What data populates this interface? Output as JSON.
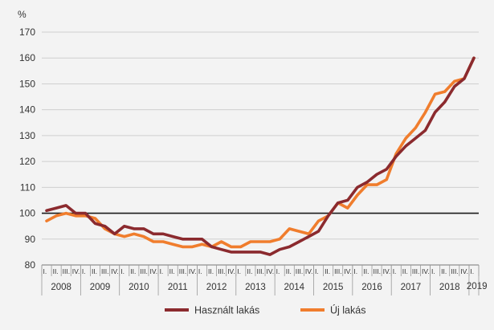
{
  "chart_data": {
    "type": "line",
    "y_unit_label": "%",
    "ylim": [
      80,
      170
    ],
    "y_ticks": [
      80,
      90,
      100,
      110,
      120,
      130,
      140,
      150,
      160,
      170
    ],
    "reference_line": 100,
    "grid": "horizontal",
    "legend_position": "bottom",
    "years": [
      "2008",
      "2009",
      "2010",
      "2011",
      "2012",
      "2013",
      "2014",
      "2015",
      "2016",
      "2017",
      "2018",
      "2019"
    ],
    "quarters": [
      "I.",
      "II.",
      "III.",
      "IV."
    ],
    "series": [
      {
        "name": "Használt lakás",
        "color": "#8b2a2e",
        "values": [
          101,
          102,
          103,
          100,
          100,
          96,
          95,
          92,
          95,
          94,
          94,
          92,
          92,
          91,
          90,
          90,
          90,
          87,
          86,
          85,
          85,
          85,
          85,
          84,
          86,
          87,
          89,
          91,
          93,
          99,
          104,
          105,
          110,
          112,
          115,
          117,
          122,
          126,
          129,
          132,
          139,
          143,
          149,
          152,
          160
        ]
      },
      {
        "name": "Új lakás",
        "color": "#f07d2d",
        "values": [
          97,
          99,
          100,
          99,
          99,
          98,
          94,
          92,
          91,
          92,
          91,
          89,
          89,
          88,
          87,
          87,
          88,
          87,
          89,
          87,
          87,
          89,
          89,
          89,
          90,
          94,
          93,
          92,
          97,
          99,
          104,
          102,
          107,
          111,
          111,
          113,
          123,
          129,
          133,
          139,
          146,
          147,
          151,
          152,
          160
        ]
      }
    ]
  }
}
